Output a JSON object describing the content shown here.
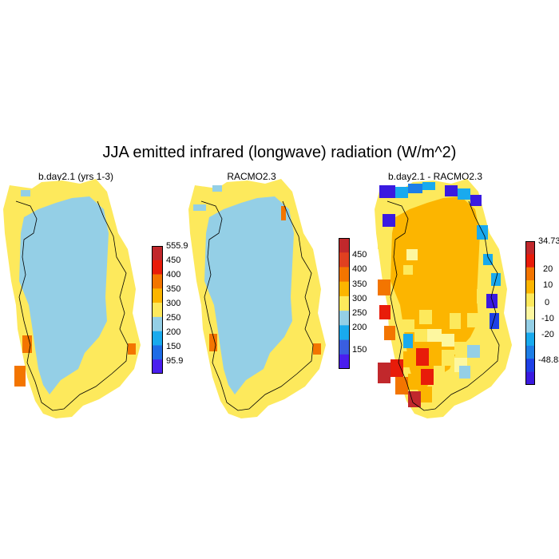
{
  "title": "JJA emitted infrared (longwave) radiation (W/m^2)",
  "panels": [
    {
      "id": "model",
      "title": "b.day2.1 (yrs 1-3)",
      "colors": [
        "#4a1eee",
        "#1e6ce6",
        "#19aaee",
        "#94cfe6",
        "#fde95c",
        "#fcb500",
        "#f37500",
        "#e81c0a",
        "#c1282c"
      ],
      "labels": [
        "555.9",
        "450",
        "400",
        "350",
        "300",
        "250",
        "200",
        "150",
        "95.9"
      ]
    },
    {
      "id": "obs",
      "title": "RACMO2.3",
      "colors": [
        "#4a1eee",
        "#3a5ee0",
        "#19aaee",
        "#94cfe6",
        "#fde95c",
        "#fcb500",
        "#f37500",
        "#e04020",
        "#c1282c"
      ],
      "labels": [
        "450",
        "400",
        "350",
        "300",
        "250",
        "200",
        "150"
      ]
    },
    {
      "id": "diff",
      "title": "b.day2.1 - RACMO2.3",
      "colors": [
        "#3a1ae0",
        "#1e40e6",
        "#1e7ee6",
        "#19aaee",
        "#94cfe6",
        "#fdf7a0",
        "#fde95c",
        "#fcb500",
        "#f37500",
        "#e81c0a",
        "#c1282c"
      ],
      "labels": [
        "34.73",
        "20",
        "10",
        "0",
        "-10",
        "-20",
        "-48.83"
      ]
    }
  ]
}
